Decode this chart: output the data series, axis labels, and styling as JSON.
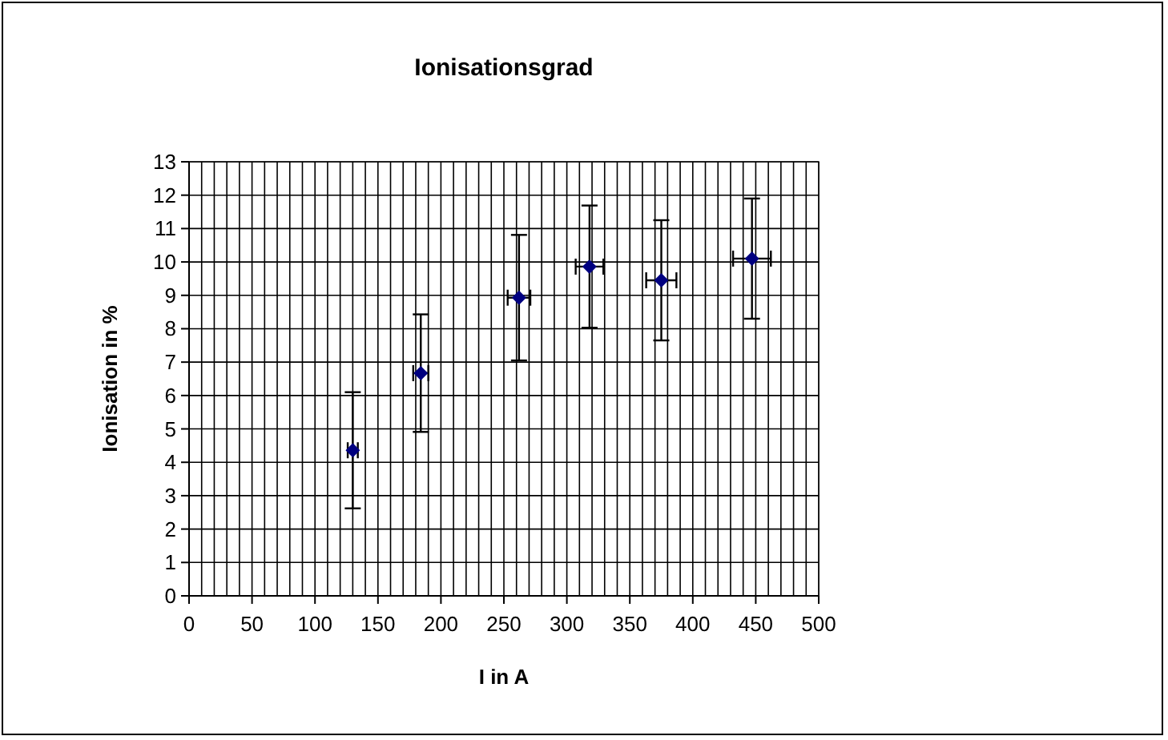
{
  "chart_data": {
    "type": "scatter",
    "title": "Ionisationsgrad",
    "xlabel": "I in A",
    "ylabel": "Ionisation in %",
    "x": [
      130,
      184,
      262,
      318,
      375,
      447
    ],
    "series": [
      {
        "color": "#000080",
        "values": [
          4.36,
          6.67,
          8.93,
          9.86,
          9.45,
          10.1
        ],
        "errors": [
          1.74,
          1.76,
          1.88,
          1.83,
          1.8,
          1.8
        ],
        "xerrors": [
          4,
          6,
          9,
          11,
          12,
          15
        ]
      }
    ],
    "xlim": [
      0,
      500
    ],
    "ylim": [
      0,
      13
    ],
    "xticks": [
      0,
      {
        "value": 10,
        "label": null
      },
      {
        "value": 20,
        "label": null
      },
      {
        "value": 30,
        "label": null
      },
      {
        "value": 40,
        "label": null
      },
      50,
      {
        "value": 60,
        "label": null
      },
      {
        "value": 70,
        "label": null
      },
      {
        "value": 80,
        "label": null
      },
      {
        "value": 90,
        "label": null
      },
      100,
      {
        "value": 110,
        "label": null
      },
      {
        "value": 120,
        "label": null
      },
      {
        "value": 130,
        "label": null
      },
      {
        "value": 140,
        "label": null
      },
      150,
      {
        "value": 160,
        "label": null
      },
      {
        "value": 170,
        "label": null
      },
      {
        "value": 180,
        "label": null
      },
      {
        "value": 190,
        "label": null
      },
      200,
      {
        "value": 210,
        "label": null
      },
      {
        "value": 220,
        "label": null
      },
      {
        "value": 230,
        "label": null
      },
      {
        "value": 240,
        "label": null
      },
      250,
      {
        "value": 260,
        "label": null
      },
      {
        "value": 270,
        "label": null
      },
      {
        "value": 280,
        "label": null
      },
      {
        "value": 290,
        "label": null
      },
      300,
      {
        "value": 310,
        "label": null
      },
      {
        "value": 320,
        "label": null
      },
      {
        "value": 330,
        "label": null
      },
      {
        "value": 340,
        "label": null
      },
      350,
      {
        "value": 360,
        "label": null
      },
      {
        "value": 370,
        "label": null
      },
      {
        "value": 380,
        "label": null
      },
      {
        "value": 390,
        "label": null
      },
      400,
      {
        "value": 410,
        "label": null
      },
      {
        "value": 420,
        "label": null
      },
      {
        "value": 430,
        "label": null
      },
      {
        "value": 440,
        "label": null
      },
      450,
      {
        "value": 460,
        "label": null
      },
      {
        "value": 470,
        "label": null
      },
      {
        "value": 480,
        "label": null
      },
      {
        "value": 490,
        "label": null
      },
      500
    ],
    "yticks": [
      0,
      1,
      2,
      3,
      4,
      5,
      6,
      7,
      8,
      9,
      10,
      11,
      12,
      13
    ],
    "grid": true,
    "marker": "diamond"
  }
}
